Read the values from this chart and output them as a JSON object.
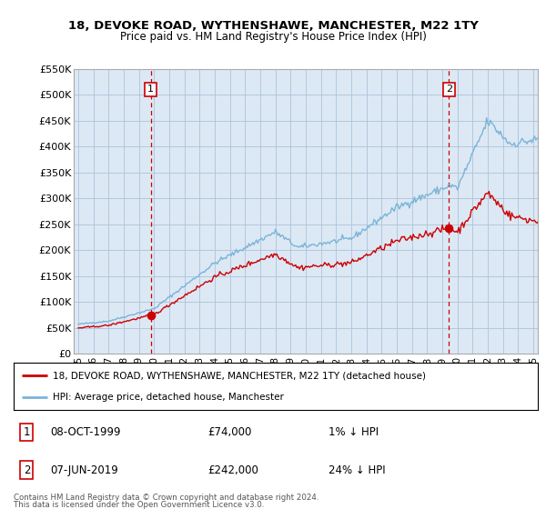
{
  "title": "18, DEVOKE ROAD, WYTHENSHAWE, MANCHESTER, M22 1TY",
  "subtitle": "Price paid vs. HM Land Registry's House Price Index (HPI)",
  "ylim": [
    0,
    550000
  ],
  "yticks": [
    0,
    50000,
    100000,
    150000,
    200000,
    250000,
    300000,
    350000,
    400000,
    450000,
    500000,
    550000
  ],
  "ytick_labels": [
    "£0",
    "£50K",
    "£100K",
    "£150K",
    "£200K",
    "£250K",
    "£300K",
    "£350K",
    "£400K",
    "£450K",
    "£500K",
    "£550K"
  ],
  "hpi_color": "#7ab4d8",
  "price_color": "#cc0000",
  "marker_color": "#cc0000",
  "sale1_x": 1999.78,
  "sale1_price": 74000,
  "sale2_x": 2019.44,
  "sale2_price": 242000,
  "legend_line1": "18, DEVOKE ROAD, WYTHENSHAWE, MANCHESTER, M22 1TY (detached house)",
  "legend_line2": "HPI: Average price, detached house, Manchester",
  "footer1": "Contains HM Land Registry data © Crown copyright and database right 2024.",
  "footer2": "This data is licensed under the Open Government Licence v3.0.",
  "bg_color": "#dde8f0",
  "grid_color": "#aac4d8",
  "vline_color": "#cc0000",
  "chart_bg": "#dde8f5"
}
